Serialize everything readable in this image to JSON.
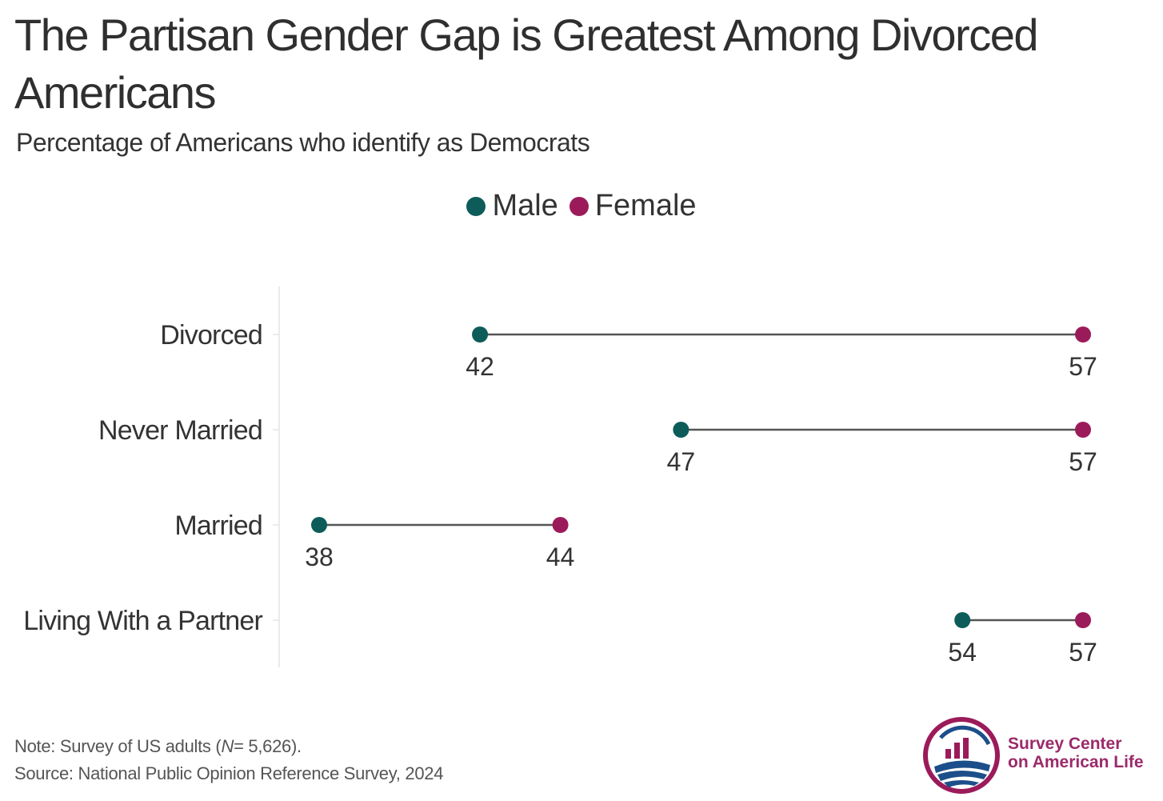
{
  "title": "The Partisan Gender Gap is Greatest Among Divorced Americans",
  "subtitle": "Percentage of Americans who identify as Democrats",
  "legend": {
    "male": "Male",
    "female": "Female"
  },
  "colors": {
    "male": "#0d5c5a",
    "female": "#9b1b5a",
    "connector": "#555555",
    "axis": "#e4e4e4",
    "text": "#333333"
  },
  "chart_data": {
    "type": "dumbbell",
    "title": "The Partisan Gender Gap is Greatest Among Divorced Americans",
    "subtitle": "Percentage of Americans who identify as Democrats",
    "categories": [
      "Divorced",
      "Never Married",
      "Married",
      "Living With a Partner"
    ],
    "series": [
      {
        "name": "Male",
        "values": [
          42,
          47,
          38,
          54
        ]
      },
      {
        "name": "Female",
        "values": [
          57,
          57,
          44,
          57
        ]
      }
    ],
    "xlim": [
      37,
      58
    ],
    "xlabel": "",
    "ylabel": "",
    "legend": "top-center",
    "grid": false
  },
  "note": {
    "prefix": "Note: Survey of US adults (",
    "n_symbol": "N",
    "suffix": "= 5,626).",
    "source": "Source: National Public Opinion Reference Survey, 2024"
  },
  "logo": {
    "line1": "Survey Center",
    "line2": "on American Life"
  }
}
